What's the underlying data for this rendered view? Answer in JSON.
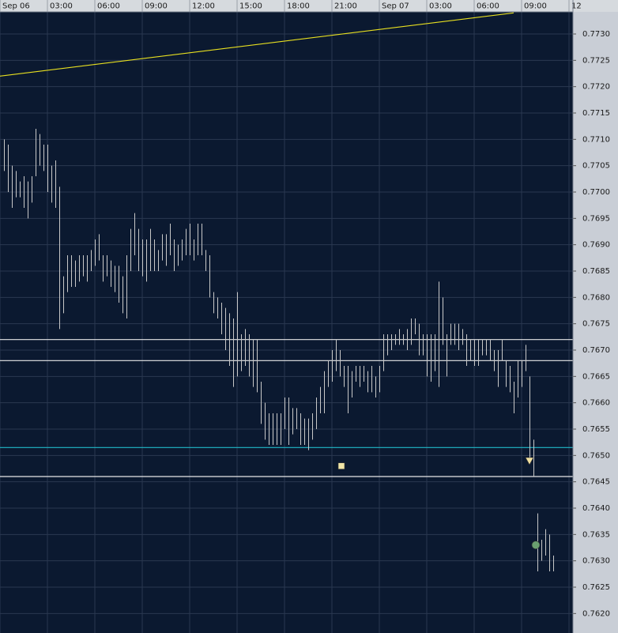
{
  "chart_data": {
    "type": "hilo",
    "color": "#c8c8c8",
    "background": "#0b1930",
    "grid": true,
    "grid_color": "#2a3850",
    "xlim": [
      0,
      36.25
    ],
    "xticks": [
      {
        "value": 0,
        "label": "Sep 06"
      },
      {
        "value": 3,
        "label": "03:00"
      },
      {
        "value": 6,
        "label": "06:00"
      },
      {
        "value": 9,
        "label": "09:00"
      },
      {
        "value": 12,
        "label": "12:00"
      },
      {
        "value": 15,
        "label": "15:00"
      },
      {
        "value": 18,
        "label": "18:00"
      },
      {
        "value": 21,
        "label": "21:00"
      },
      {
        "value": 24,
        "label": "Sep 07"
      },
      {
        "value": 27,
        "label": "03:00"
      },
      {
        "value": 30,
        "label": "06:00"
      },
      {
        "value": 33,
        "label": "09:00"
      },
      {
        "value": 36,
        "label": "12"
      }
    ],
    "ylim": [
      0.76163,
      0.77342
    ],
    "yticks": [
      {
        "value": 0.773,
        "label": "0.7730"
      },
      0.7725,
      {
        "value": 0.772,
        "label": "0.7720"
      },
      0.7715,
      {
        "value": 0.771,
        "label": "0.7710"
      },
      0.7705,
      {
        "value": 0.77,
        "label": "0.7700"
      },
      0.7695,
      {
        "value": 0.769,
        "label": "0.7690"
      },
      0.7685,
      {
        "value": 0.768,
        "label": "0.7680"
      },
      0.7675,
      {
        "value": 0.767,
        "label": "0.7670"
      },
      0.7665,
      {
        "value": 0.766,
        "label": "0.7660"
      },
      0.7655,
      {
        "value": 0.765,
        "label": "0.7650"
      },
      0.7645,
      {
        "value": 0.764,
        "label": "0.7640"
      },
      0.7635,
      {
        "value": 0.763,
        "label": "0.7630"
      },
      0.7625,
      {
        "value": 0.762,
        "label": "0.7620"
      }
    ],
    "x": [
      0.25,
      0.5,
      0.75,
      1,
      1.25,
      1.5,
      1.75,
      2,
      2.25,
      2.5,
      2.75,
      3,
      3.25,
      3.5,
      3.75,
      4,
      4.25,
      4.5,
      4.75,
      5,
      5.25,
      5.5,
      5.75,
      6,
      6.25,
      6.5,
      6.75,
      7,
      7.25,
      7.5,
      7.75,
      8,
      8.25,
      8.5,
      8.75,
      9,
      9.25,
      9.5,
      9.75,
      10,
      10.25,
      10.5,
      10.75,
      11,
      11.25,
      11.5,
      11.75,
      12,
      12.25,
      12.5,
      12.75,
      13,
      13.25,
      13.5,
      13.75,
      14,
      14.25,
      14.5,
      14.75,
      15,
      15.25,
      15.5,
      15.75,
      16,
      16.25,
      16.5,
      16.75,
      17,
      17.25,
      17.5,
      17.75,
      18,
      18.25,
      18.5,
      18.75,
      19,
      19.25,
      19.5,
      19.75,
      20,
      20.25,
      20.5,
      20.75,
      21,
      21.25,
      21.5,
      21.75,
      22,
      22.25,
      22.5,
      22.75,
      23,
      23.25,
      23.5,
      23.75,
      24,
      24.25,
      24.5,
      24.75,
      25,
      25.25,
      25.5,
      25.75,
      26,
      26.25,
      26.5,
      26.75,
      27,
      27.25,
      27.5,
      27.75,
      28,
      28.25,
      28.5,
      28.75,
      29,
      29.25,
      29.5,
      29.75,
      30,
      30.25,
      30.5,
      30.75,
      31,
      31.25,
      31.5,
      31.75,
      32,
      32.25,
      32.5,
      32.75,
      33,
      33.25,
      33.5,
      33.75,
      34,
      34.25,
      34.5,
      34.75,
      35
    ],
    "high": [
      0.771,
      0.7709,
      0.7705,
      0.7704,
      0.7702,
      0.7703,
      0.7702,
      0.7703,
      0.7712,
      0.7711,
      0.7709,
      0.7709,
      0.7705,
      0.7706,
      0.7701,
      0.7684,
      0.7688,
      0.7688,
      0.7687,
      0.7688,
      0.7688,
      0.7688,
      0.7689,
      0.7691,
      0.7692,
      0.7688,
      0.7688,
      0.7687,
      0.7686,
      0.7686,
      0.7684,
      0.7688,
      0.7693,
      0.7696,
      0.7693,
      0.7691,
      0.7691,
      0.7693,
      0.7691,
      0.7689,
      0.7692,
      0.7692,
      0.7694,
      0.7691,
      0.769,
      0.7691,
      0.7693,
      0.7694,
      0.7691,
      0.7694,
      0.7694,
      0.7689,
      0.7688,
      0.7681,
      0.768,
      0.7679,
      0.7678,
      0.7677,
      0.7676,
      0.7681,
      0.7673,
      0.7674,
      0.7673,
      0.7672,
      0.7672,
      0.7664,
      0.766,
      0.7658,
      0.7658,
      0.7658,
      0.7658,
      0.7661,
      0.7661,
      0.7659,
      0.7659,
      0.7658,
      0.7657,
      0.7657,
      0.7658,
      0.7661,
      0.7663,
      0.7666,
      0.7668,
      0.767,
      0.7672,
      0.767,
      0.7667,
      0.7667,
      0.7666,
      0.7667,
      0.7667,
      0.7667,
      0.7666,
      0.7667,
      0.7665,
      0.7667,
      0.7673,
      0.7673,
      0.7673,
      0.7673,
      0.7674,
      0.7673,
      0.7674,
      0.7676,
      0.7676,
      0.7675,
      0.7673,
      0.7673,
      0.7673,
      0.7673,
      0.7683,
      0.768,
      0.7673,
      0.7675,
      0.7675,
      0.7675,
      0.7674,
      0.7673,
      0.7672,
      0.7672,
      0.7672,
      0.7672,
      0.7672,
      0.7672,
      0.767,
      0.767,
      0.7672,
      0.7668,
      0.7667,
      0.7664,
      0.7668,
      0.7668,
      0.7671,
      0.7665,
      0.7653,
      0.7639,
      0.7634,
      0.7636,
      0.7635,
      0.7631
    ],
    "low": [
      0.7704,
      0.77,
      0.7697,
      0.7699,
      0.7699,
      0.7697,
      0.7695,
      0.7698,
      0.7703,
      0.7705,
      0.7704,
      0.77,
      0.7698,
      0.7697,
      0.7674,
      0.7677,
      0.7681,
      0.7682,
      0.7682,
      0.7683,
      0.7684,
      0.7683,
      0.7685,
      0.7686,
      0.7687,
      0.7683,
      0.7684,
      0.7682,
      0.7681,
      0.7679,
      0.7677,
      0.7676,
      0.7685,
      0.7688,
      0.7685,
      0.7684,
      0.7683,
      0.7685,
      0.7685,
      0.7685,
      0.7687,
      0.7686,
      0.7688,
      0.7685,
      0.7686,
      0.7687,
      0.7688,
      0.7688,
      0.7687,
      0.7688,
      0.7688,
      0.7685,
      0.768,
      0.7677,
      0.7676,
      0.7673,
      0.767,
      0.7667,
      0.7663,
      0.7665,
      0.7666,
      0.7667,
      0.7665,
      0.7663,
      0.7662,
      0.7656,
      0.7653,
      0.7652,
      0.7652,
      0.7652,
      0.7652,
      0.7655,
      0.7652,
      0.7654,
      0.7655,
      0.7652,
      0.7652,
      0.7651,
      0.7653,
      0.7655,
      0.7658,
      0.7658,
      0.7663,
      0.7664,
      0.7666,
      0.7665,
      0.7663,
      0.7658,
      0.7661,
      0.7664,
      0.7663,
      0.7664,
      0.7662,
      0.7662,
      0.7661,
      0.7662,
      0.7666,
      0.7669,
      0.767,
      0.7671,
      0.7671,
      0.7671,
      0.767,
      0.7671,
      0.7673,
      0.7669,
      0.7669,
      0.7665,
      0.7664,
      0.7666,
      0.7663,
      0.7671,
      0.7665,
      0.7671,
      0.7671,
      0.767,
      0.7671,
      0.7667,
      0.7668,
      0.7667,
      0.7667,
      0.7669,
      0.7669,
      0.7668,
      0.7666,
      0.7663,
      0.7668,
      0.7663,
      0.7662,
      0.7658,
      0.7661,
      0.7663,
      0.7666,
      0.7649,
      0.7646,
      0.7628,
      0.763,
      0.7631,
      0.7628,
      0.7628
    ],
    "levels": [
      {
        "value": 0.7672,
        "color": "#e8e8e8"
      },
      {
        "value": 0.7668,
        "color": "#e8e8e8"
      },
      {
        "value": 0.76515,
        "color": "#20b8c8"
      },
      {
        "value": 0.7646,
        "color": "#e8e8e8"
      }
    ],
    "trendline": {
      "x": [
        0,
        32.5
      ],
      "values": [
        0.7722,
        0.7734
      ],
      "color": "#e8e020"
    },
    "markers": [
      {
        "shape": "square",
        "x": 21.6,
        "value": 0.7648,
        "color": "#f0e6a8"
      },
      {
        "shape": "triangle-down",
        "x": 33.5,
        "value": 0.7649,
        "color": "#f0e0a0"
      },
      {
        "shape": "circle",
        "x": 33.9,
        "value": 0.7633,
        "color": "#6aa070"
      }
    ]
  }
}
